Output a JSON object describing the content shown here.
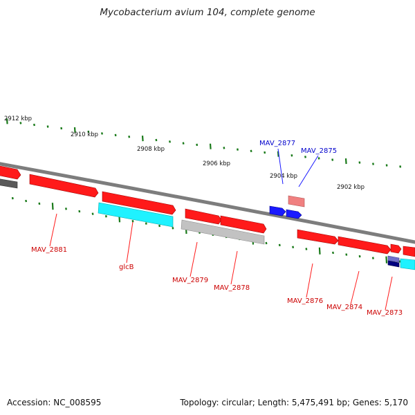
{
  "title": "Mycobacterium avium 104, complete genome",
  "footer": {
    "accession": "Accession: NC_008595",
    "summary": "Topology: circular; Length: 5,475,491 bp; Genes: 5,170"
  },
  "colors": {
    "backbone": "#7d7d7d",
    "tick": "#1a7a1a",
    "red": "#ff1a1a",
    "red_label": "#cc0000",
    "blue": "#1a1aff",
    "blue_label": "#0000cc",
    "gray": "#c2c2c2",
    "dark_gray": "#5a5a5a",
    "cyan": "#1ff2ff",
    "pink": "#f08080",
    "navy": "#000080",
    "purple": "#7070cc"
  },
  "scale": {
    "ticks": [
      {
        "label": "2912 kbp"
      },
      {
        "label": "2910 kbp"
      },
      {
        "label": "2908 kbp"
      },
      {
        "label": "2906 kbp"
      },
      {
        "label": "2904 kbp"
      },
      {
        "label": "2902 kbp"
      }
    ]
  },
  "genes": [
    {
      "name": "MAV_2881",
      "color": "red",
      "strand": "forward"
    },
    {
      "name": "glcB",
      "color": "cyan",
      "strand": "forward"
    },
    {
      "name": "MAV_2879",
      "color": "red",
      "strand": "forward"
    },
    {
      "name": "MAV_2878",
      "color": "red",
      "strand": "forward"
    },
    {
      "name": "MAV_2877",
      "color": "blue",
      "strand": "forward"
    },
    {
      "name": "MAV_2875",
      "color": "blue",
      "strand": "forward"
    },
    {
      "name": "MAV_2876",
      "color": "red",
      "strand": "forward"
    },
    {
      "name": "MAV_2874",
      "color": "red",
      "strand": "forward"
    },
    {
      "name": "MAV_2873",
      "color": "red",
      "strand": "forward"
    }
  ]
}
